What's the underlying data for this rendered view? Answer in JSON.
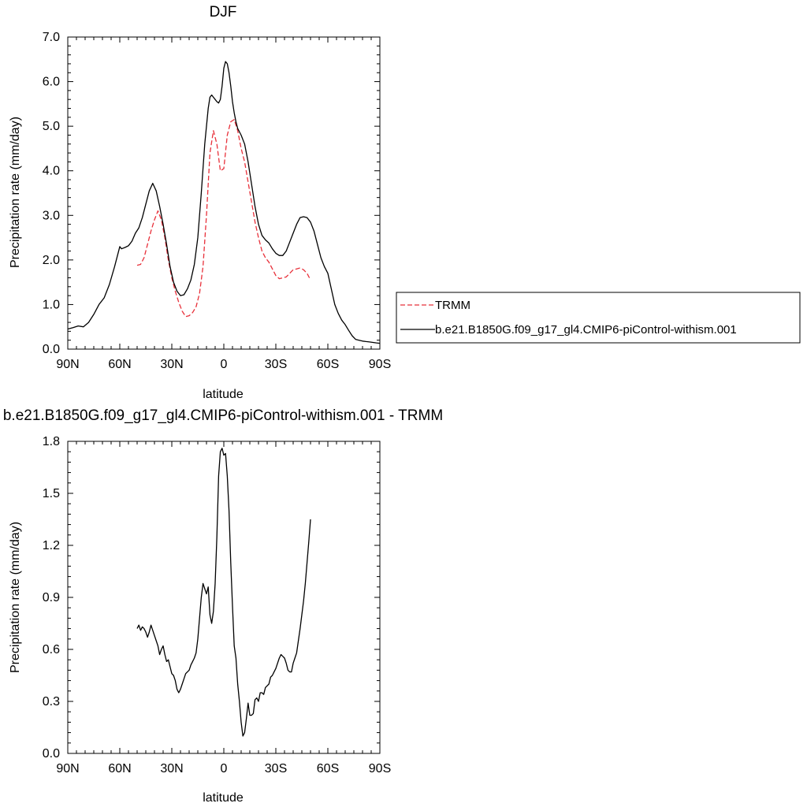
{
  "chart_data": [
    {
      "type": "line",
      "title": "DJF",
      "xlabel": "latitude",
      "ylabel": "Precipitation rate (mm/day)",
      "xlim": [
        90,
        -90
      ],
      "ylim": [
        0,
        7
      ],
      "x_ticks": [
        90,
        60,
        30,
        0,
        -30,
        -60,
        -90
      ],
      "x_tick_labels": [
        "90N",
        "60N",
        "30N",
        "0",
        "30S",
        "60S",
        "90S"
      ],
      "y_ticks": [
        0,
        1,
        2,
        3,
        4,
        5,
        6,
        7
      ],
      "y_tick_labels": [
        "0.0",
        "1.0",
        "2.0",
        "3.0",
        "4.0",
        "5.0",
        "6.0",
        "7.0"
      ],
      "legend_position": "right",
      "series": [
        {
          "name": "TRMM",
          "color": "#e8303a",
          "dash": "dashed",
          "x": [
            50,
            48,
            46,
            44,
            42,
            40,
            38,
            36,
            34,
            32,
            30,
            28,
            26,
            24,
            22,
            20,
            18,
            16,
            14,
            12,
            10,
            8,
            6,
            4,
            2,
            0,
            -2,
            -4,
            -6,
            -8,
            -10,
            -12,
            -14,
            -16,
            -18,
            -20,
            -22,
            -24,
            -26,
            -28,
            -30,
            -32,
            -34,
            -36,
            -38,
            -40,
            -42,
            -44,
            -46,
            -48,
            -50
          ],
          "y": [
            1.88,
            1.9,
            2.05,
            2.35,
            2.65,
            2.9,
            3.1,
            2.9,
            2.5,
            2.0,
            1.6,
            1.3,
            1.05,
            0.85,
            0.73,
            0.75,
            0.82,
            0.95,
            1.25,
            1.85,
            3.0,
            4.4,
            4.9,
            4.6,
            4.0,
            4.05,
            4.8,
            5.1,
            5.15,
            4.9,
            4.5,
            4.2,
            3.75,
            3.3,
            2.85,
            2.5,
            2.2,
            2.05,
            1.95,
            1.8,
            1.65,
            1.58,
            1.6,
            1.62,
            1.7,
            1.78,
            1.8,
            1.82,
            1.78,
            1.7,
            1.55
          ]
        },
        {
          "name": "b.e21.B1850G.f09_g17_gl4.CMIP6-piControl-withism.001",
          "color": "#000000",
          "dash": "solid",
          "x": [
            90,
            87,
            84,
            81,
            78,
            75,
            72,
            69,
            66,
            63,
            61,
            60,
            59,
            57,
            55,
            53,
            51,
            49,
            47,
            45,
            43,
            41,
            39,
            37,
            35,
            33,
            31,
            29,
            27,
            25,
            23,
            21,
            19,
            17,
            15,
            13,
            11,
            9,
            8,
            7,
            6,
            5,
            4,
            3,
            2,
            1,
            0,
            -1,
            -2,
            -3,
            -4,
            -5,
            -6,
            -7,
            -8,
            -10,
            -12,
            -14,
            -16,
            -18,
            -20,
            -22,
            -24,
            -26,
            -28,
            -30,
            -32,
            -34,
            -36,
            -38,
            -40,
            -42,
            -44,
            -46,
            -48,
            -50,
            -52,
            -54,
            -56,
            -58,
            -60,
            -62,
            -64,
            -66,
            -68,
            -70,
            -72,
            -74,
            -76,
            -78,
            -80,
            -82,
            -84,
            -86,
            -88,
            -90
          ],
          "y": [
            0.45,
            0.48,
            0.52,
            0.5,
            0.6,
            0.78,
            1.0,
            1.15,
            1.45,
            1.85,
            2.15,
            2.3,
            2.25,
            2.28,
            2.32,
            2.42,
            2.6,
            2.72,
            2.95,
            3.25,
            3.55,
            3.72,
            3.55,
            3.2,
            2.8,
            2.35,
            1.85,
            1.5,
            1.3,
            1.2,
            1.22,
            1.35,
            1.55,
            1.9,
            2.5,
            3.5,
            4.6,
            5.4,
            5.65,
            5.7,
            5.65,
            5.6,
            5.55,
            5.52,
            5.6,
            5.9,
            6.3,
            6.45,
            6.4,
            6.2,
            5.9,
            5.55,
            5.3,
            5.1,
            4.95,
            4.8,
            4.6,
            4.2,
            3.7,
            3.2,
            2.8,
            2.55,
            2.45,
            2.38,
            2.25,
            2.15,
            2.1,
            2.1,
            2.2,
            2.4,
            2.6,
            2.8,
            2.95,
            2.97,
            2.95,
            2.85,
            2.65,
            2.35,
            2.05,
            1.85,
            1.7,
            1.35,
            1.0,
            0.8,
            0.65,
            0.55,
            0.42,
            0.3,
            0.22,
            0.2,
            0.18,
            0.17,
            0.16,
            0.15,
            0.14,
            0.13
          ]
        }
      ]
    },
    {
      "type": "line",
      "title": "b.e21.B1850G.f09_g17_gl4.CMIP6-piControl-withism.001 - TRMM",
      "xlabel": "latitude",
      "ylabel": "Precipitation rate (mm/day)",
      "xlim": [
        90,
        -90
      ],
      "ylim": [
        0,
        1.8
      ],
      "x_ticks": [
        90,
        60,
        30,
        0,
        -30,
        -60,
        -90
      ],
      "x_tick_labels": [
        "90N",
        "60N",
        "30N",
        "0",
        "30S",
        "60S",
        "90S"
      ],
      "y_ticks": [
        0,
        0.3,
        0.6,
        0.9,
        1.2,
        1.5,
        1.8
      ],
      "y_tick_labels": [
        "0.0",
        "0.3",
        "0.6",
        "0.9",
        "1.2",
        "1.5",
        "1.8"
      ],
      "series": [
        {
          "color": "#000000",
          "dash": "solid",
          "x": [
            50,
            49,
            48,
            47,
            46,
            45,
            44,
            43,
            42,
            41,
            40,
            39,
            38,
            37,
            36,
            35,
            34,
            33,
            32,
            31,
            30,
            29,
            28,
            27,
            26,
            25,
            24,
            23,
            22,
            21,
            20,
            19,
            18,
            17,
            16,
            15,
            14,
            13,
            12,
            11,
            10,
            9,
            8,
            7,
            6,
            5,
            4,
            3,
            2,
            1,
            0,
            -1,
            -2,
            -3,
            -4,
            -5,
            -6,
            -7,
            -8,
            -9,
            -10,
            -11,
            -12,
            -13,
            -14,
            -15,
            -16,
            -17,
            -18,
            -19,
            -20,
            -21,
            -22,
            -23,
            -24,
            -25,
            -26,
            -27,
            -28,
            -29,
            -30,
            -31,
            -32,
            -33,
            -34,
            -35,
            -36,
            -37,
            -38,
            -39,
            -40,
            -41,
            -42,
            -43,
            -44,
            -45,
            -46,
            -47,
            -48,
            -49,
            -50
          ],
          "y": [
            0.72,
            0.74,
            0.71,
            0.73,
            0.72,
            0.7,
            0.67,
            0.7,
            0.74,
            0.71,
            0.68,
            0.65,
            0.62,
            0.57,
            0.6,
            0.62,
            0.57,
            0.53,
            0.54,
            0.5,
            0.46,
            0.45,
            0.42,
            0.37,
            0.35,
            0.37,
            0.4,
            0.43,
            0.46,
            0.47,
            0.48,
            0.51,
            0.53,
            0.55,
            0.58,
            0.66,
            0.78,
            0.9,
            0.98,
            0.95,
            0.92,
            0.96,
            0.8,
            0.75,
            0.82,
            0.98,
            1.25,
            1.6,
            1.74,
            1.76,
            1.72,
            1.73,
            1.6,
            1.4,
            1.1,
            0.85,
            0.62,
            0.55,
            0.4,
            0.3,
            0.18,
            0.1,
            0.12,
            0.2,
            0.29,
            0.22,
            0.22,
            0.23,
            0.31,
            0.32,
            0.3,
            0.35,
            0.35,
            0.34,
            0.38,
            0.39,
            0.4,
            0.44,
            0.45,
            0.47,
            0.49,
            0.52,
            0.55,
            0.57,
            0.56,
            0.55,
            0.52,
            0.48,
            0.47,
            0.47,
            0.52,
            0.55,
            0.58,
            0.65,
            0.72,
            0.8,
            0.88,
            0.98,
            1.1,
            1.22,
            1.35
          ]
        }
      ]
    }
  ]
}
